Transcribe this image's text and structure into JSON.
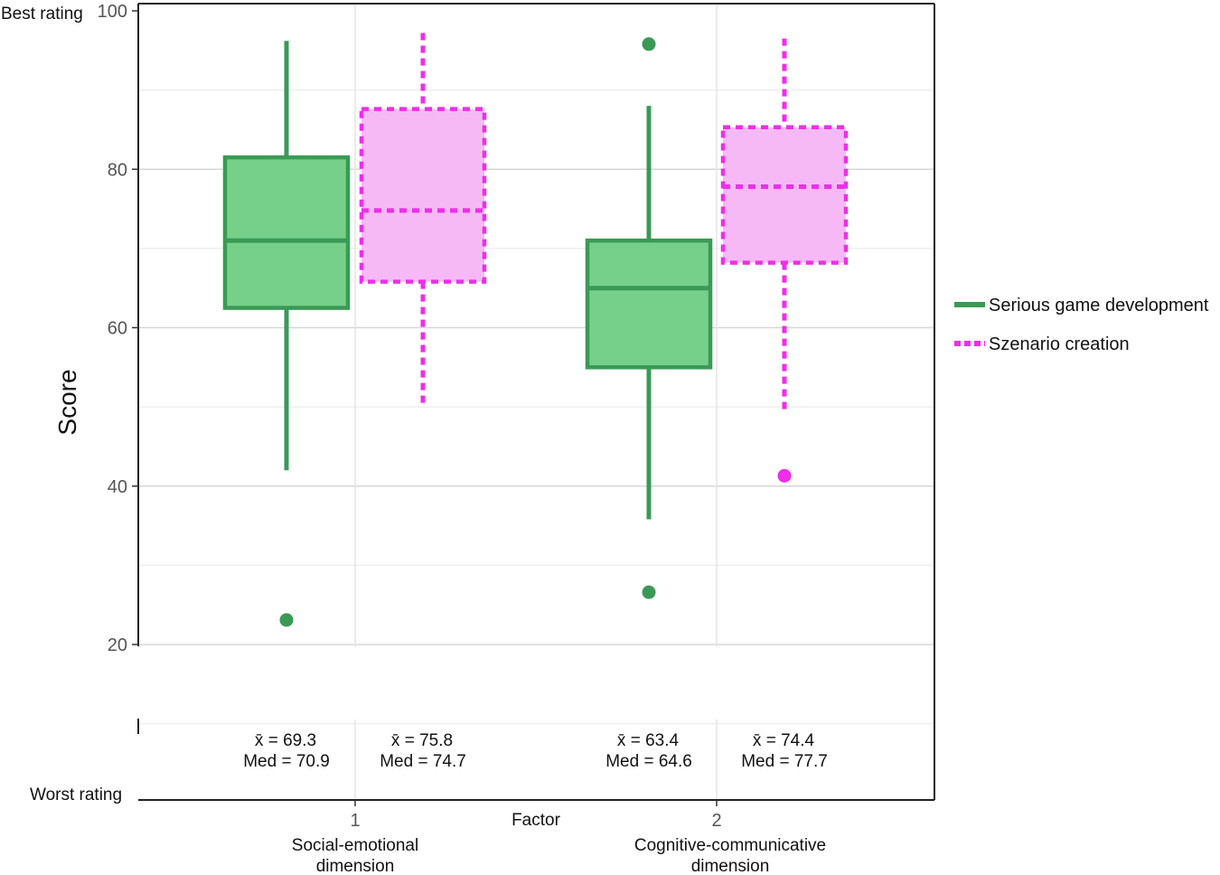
{
  "chart_data": {
    "type": "boxplot",
    "ylabel": "Score",
    "xlabel": "Factor",
    "ylim": [
      10,
      100
    ],
    "yticks": [
      20,
      40,
      60,
      80,
      100
    ],
    "best_label": "Best rating",
    "worst_label": "Worst rating",
    "categories": [
      {
        "tick": "1",
        "name_line1": "Social-emotional",
        "name_line2": "dimension"
      },
      {
        "tick": "2",
        "name_line1": "Cognitive-communicative",
        "name_line2": "dimension"
      }
    ],
    "series": [
      {
        "name": "Serious game development",
        "color": "#3a9a55",
        "fill": "#76d08a",
        "dashed": false,
        "boxes": [
          {
            "whisker_low": 42,
            "q1": 62.5,
            "median": 71,
            "q3": 81.5,
            "whisker_high": 96.2,
            "outliers": [
              23.1
            ],
            "mean_text": "x̄ = 69.3",
            "median_text": "Med = 70.9"
          },
          {
            "whisker_low": 35.8,
            "q1": 55,
            "median": 65,
            "q3": 71,
            "whisker_high": 88,
            "outliers": [
              95.8,
              26.6
            ],
            "mean_text": "x̄ = 63.4",
            "median_text": "Med = 64.6"
          }
        ]
      },
      {
        "name": "Szenario creation",
        "color": "#ee2ee8",
        "fill": "#f6b9f6",
        "dashed": true,
        "boxes": [
          {
            "whisker_low": 50.5,
            "q1": 65.8,
            "median": 74.8,
            "q3": 87.6,
            "whisker_high": 97.2,
            "outliers": [],
            "mean_text": "x̄ = 75.8",
            "median_text": "Med = 74.7"
          },
          {
            "whisker_low": 49.2,
            "q1": 68.2,
            "median": 77.8,
            "q3": 85.3,
            "whisker_high": 96.5,
            "outliers": [
              41.3
            ],
            "mean_text": "x̄ = 74.4",
            "median_text": "Med = 77.7"
          }
        ]
      }
    ]
  }
}
